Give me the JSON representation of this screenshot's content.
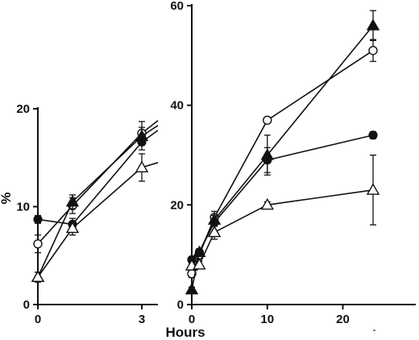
{
  "chart_data": [
    {
      "type": "line",
      "title": "",
      "xlabel": "",
      "ylabel": "%",
      "xlim": [
        0,
        3
      ],
      "ylim": [
        0,
        20
      ],
      "x_ticks": [
        0,
        3
      ],
      "y_ticks": [
        0,
        10,
        20
      ],
      "grid": false,
      "series": [
        {
          "marker": "filled-circle",
          "x": [
            0,
            1,
            3
          ],
          "y": [
            8.7,
            8.2,
            16.6
          ],
          "err": [
            0.4,
            0.6,
            0.8
          ],
          "extends_to": 17.8
        },
        {
          "marker": "open-circle",
          "x": [
            0,
            1,
            3
          ],
          "y": [
            6.2,
            10.1,
            17.5
          ],
          "err": [
            0.9,
            0.8,
            1.2
          ],
          "extends_to": 18.8
        },
        {
          "marker": "filled-triangle",
          "x": [
            0,
            1,
            3
          ],
          "y": [
            2.8,
            10.5,
            17.2
          ],
          "err": [
            0.5,
            0.7,
            0.9
          ],
          "extends_to": 18.3
        },
        {
          "marker": "open-triangle",
          "x": [
            0,
            1,
            3
          ],
          "y": [
            2.8,
            7.8,
            14.0
          ],
          "err": [
            0.5,
            0.7,
            1.4
          ],
          "extends_to": 14.5
        }
      ]
    },
    {
      "type": "line",
      "title": "",
      "xlabel": "Hours",
      "ylabel": "",
      "xlim": [
        0,
        24
      ],
      "ylim": [
        0,
        60
      ],
      "x_ticks": [
        0,
        10,
        20
      ],
      "y_ticks": [
        0,
        20,
        40,
        60
      ],
      "grid": false,
      "series": [
        {
          "marker": "filled-circle",
          "x": [
            0,
            1,
            3,
            10,
            24
          ],
          "y": [
            9,
            10.5,
            16.5,
            29,
            34
          ],
          "err": [
            0.6,
            0.6,
            0.8,
            2.5,
            0.7
          ]
        },
        {
          "marker": "open-circle",
          "x": [
            0,
            1,
            3,
            10,
            24
          ],
          "y": [
            6.2,
            10,
            17.5,
            37,
            51
          ],
          "err": [
            0.8,
            0.8,
            1.2,
            0.6,
            2.2
          ]
        },
        {
          "marker": "filled-triangle",
          "x": [
            0,
            1,
            3,
            10,
            24
          ],
          "y": [
            3,
            10.5,
            17,
            30,
            56
          ],
          "err": [
            0.5,
            0.7,
            0.9,
            4,
            3
          ]
        },
        {
          "marker": "open-triangle",
          "x": [
            0,
            1,
            3,
            10,
            24
          ],
          "y": [
            7.8,
            8,
            14.5,
            20,
            23
          ],
          "err": [
            0.5,
            0.7,
            1.4,
            0.6,
            7
          ]
        }
      ]
    }
  ]
}
